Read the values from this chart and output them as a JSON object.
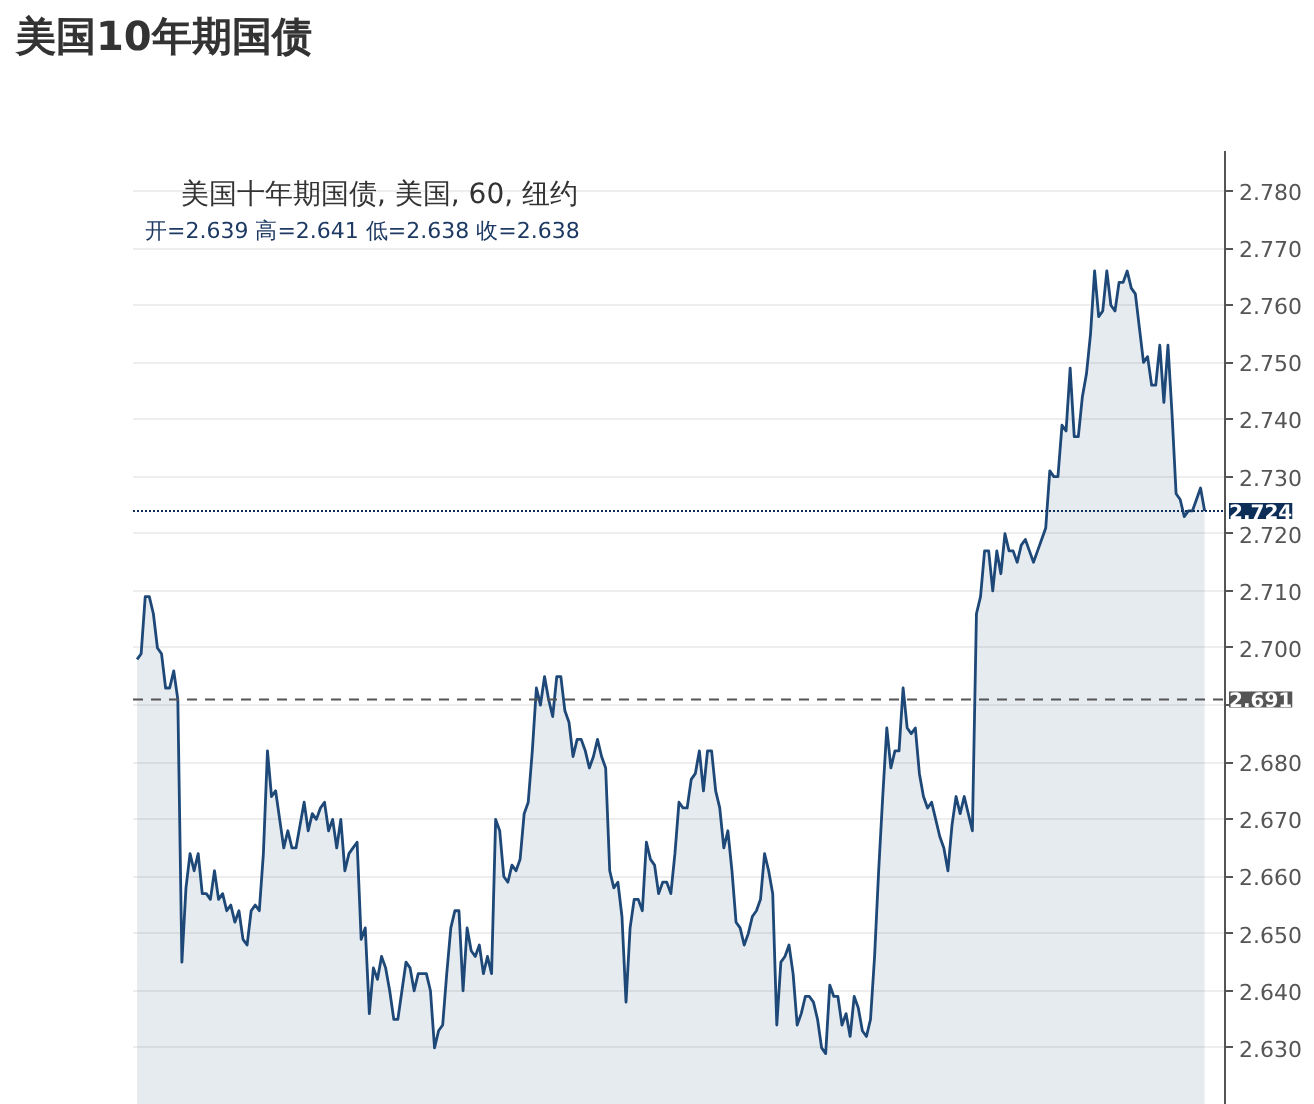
{
  "chart_data": {
    "type": "area",
    "title": "美国10年期国债",
    "subtitle": "美国十年期国债, 美国, 60, 纽约",
    "annotations": [
      "开=2.639 高=2.641 低=2.638 收=2.638"
    ],
    "categories": [
      null,
      null,
      null,
      null,
      null,
      null,
      null,
      null,
      null,
      null,
      null,
      null,
      null,
      null,
      null,
      null,
      null,
      null,
      null,
      null,
      null,
      null,
      null,
      null,
      null,
      null,
      null,
      null,
      null,
      null,
      null,
      null,
      null,
      null,
      null,
      null,
      null,
      null,
      null,
      null,
      null,
      null,
      null,
      null,
      null,
      null,
      null,
      null,
      null,
      null,
      null,
      null,
      null,
      null,
      null,
      null,
      null,
      null,
      null,
      null,
      null,
      null,
      null,
      null,
      null,
      null,
      null,
      null,
      null,
      null,
      null,
      null,
      null,
      null,
      null,
      null,
      null,
      null,
      null,
      null,
      null,
      null,
      null,
      null,
      null,
      null,
      null,
      null,
      null,
      null,
      null,
      null,
      null,
      null,
      null,
      null,
      null,
      null,
      null,
      null,
      null,
      null,
      null,
      null,
      null,
      null,
      null,
      null,
      null,
      null,
      null,
      null,
      null,
      null,
      null,
      null,
      null,
      null,
      null,
      null,
      null,
      null,
      null,
      null,
      null,
      null,
      null,
      null,
      null,
      null,
      null,
      null,
      null,
      null,
      null,
      null,
      null,
      null,
      null,
      null,
      null,
      null,
      null,
      null,
      null,
      null,
      null,
      null,
      null,
      null,
      null,
      null,
      null,
      null,
      null,
      null,
      null,
      null,
      null,
      null,
      null,
      null,
      null,
      null,
      null,
      null,
      null,
      null,
      null,
      null,
      null,
      null,
      null,
      null,
      null,
      null,
      null,
      null,
      null,
      null,
      null,
      null,
      null,
      null,
      null,
      null,
      null,
      null,
      null,
      null,
      null,
      null,
      null,
      null,
      null,
      null,
      null,
      null,
      null,
      null,
      null,
      null,
      null,
      null,
      null,
      null,
      null,
      null,
      null,
      null,
      null,
      null,
      null,
      null,
      null,
      null,
      null,
      null,
      null,
      null,
      null,
      null,
      null,
      null,
      null,
      null,
      null,
      null,
      null,
      null,
      null,
      null,
      null,
      null,
      null,
      null,
      null,
      null,
      null,
      null,
      null,
      null,
      null,
      null,
      null,
      null,
      null,
      null,
      null,
      null,
      null,
      null,
      null,
      null,
      null,
      null,
      null,
      null,
      null,
      null,
      null,
      null,
      null
    ],
    "series": [
      {
        "color": "#1d4877",
        "values": [
          2.698,
          2.699,
          2.709,
          2.709,
          2.706,
          2.7,
          2.699,
          2.693,
          2.693,
          2.696,
          2.691,
          2.645,
          2.658,
          2.664,
          2.661,
          2.664,
          2.657,
          2.657,
          2.656,
          2.661,
          2.656,
          2.657,
          2.654,
          2.655,
          2.652,
          2.654,
          2.649,
          2.648,
          2.654,
          2.655,
          2.654,
          2.664,
          2.682,
          2.674,
          2.675,
          2.67,
          2.665,
          2.668,
          2.665,
          2.665,
          2.669,
          2.673,
          2.668,
          2.671,
          2.67,
          2.672,
          2.673,
          2.668,
          2.67,
          2.665,
          2.67,
          2.661,
          2.664,
          2.665,
          2.666,
          2.649,
          2.651,
          2.636,
          2.644,
          2.642,
          2.646,
          2.644,
          2.64,
          2.635,
          2.635,
          2.64,
          2.645,
          2.644,
          2.64,
          2.643,
          2.643,
          2.643,
          2.64,
          2.63,
          2.633,
          2.634,
          2.643,
          2.651,
          2.654,
          2.654,
          2.64,
          2.651,
          2.647,
          2.646,
          2.648,
          2.643,
          2.646,
          2.643,
          2.67,
          2.668,
          2.66,
          2.659,
          2.662,
          2.661,
          2.663,
          2.671,
          2.673,
          2.682,
          2.693,
          2.69,
          2.695,
          2.691,
          2.688,
          2.695,
          2.695,
          2.689,
          2.687,
          2.681,
          2.684,
          2.684,
          2.682,
          2.679,
          2.681,
          2.684,
          2.681,
          2.679,
          2.661,
          2.658,
          2.659,
          2.653,
          2.638,
          2.651,
          2.656,
          2.656,
          2.654,
          2.666,
          2.663,
          2.662,
          2.657,
          2.659,
          2.659,
          2.657,
          2.664,
          2.673,
          2.672,
          2.672,
          2.677,
          2.678,
          2.682,
          2.675,
          2.682,
          2.682,
          2.675,
          2.672,
          2.665,
          2.668,
          2.661,
          2.652,
          2.651,
          2.648,
          2.65,
          2.653,
          2.654,
          2.656,
          2.664,
          2.661,
          2.657,
          2.634,
          2.645,
          2.646,
          2.648,
          2.643,
          2.634,
          2.636,
          2.639,
          2.639,
          2.638,
          2.635,
          2.63,
          2.629,
          2.641,
          2.639,
          2.639,
          2.634,
          2.636,
          2.632,
          2.639,
          2.637,
          2.633,
          2.632,
          2.635,
          2.646,
          2.661,
          2.674,
          2.686,
          2.679,
          2.682,
          2.682,
          2.693,
          2.686,
          2.685,
          2.686,
          2.678,
          2.674,
          2.672,
          2.673,
          2.67,
          2.667,
          2.665,
          2.661,
          2.669,
          2.674,
          2.671,
          2.674,
          2.671,
          2.668,
          2.706,
          2.709,
          2.717,
          2.717,
          2.71,
          2.717,
          2.713,
          2.72,
          2.717,
          2.717,
          2.715,
          2.718,
          2.719,
          2.717,
          2.715,
          2.717,
          2.719,
          2.721,
          2.731,
          2.73,
          2.73,
          2.739,
          2.738,
          2.749,
          2.737,
          2.737,
          2.744,
          2.748,
          2.755,
          2.766,
          2.758,
          2.759,
          2.766,
          2.76,
          2.759,
          2.764,
          2.764,
          2.766,
          2.763,
          2.762,
          2.756,
          2.75,
          2.751,
          2.746,
          2.746,
          2.753,
          2.743,
          2.753,
          2.741,
          2.727,
          2.726,
          2.723,
          2.724,
          2.724,
          2.726,
          2.728,
          2.724
        ]
      }
    ],
    "ylim": [
      2.62,
      2.787
    ],
    "yticks": [
      {
        "value": 2.63,
        "label": "2.630"
      },
      {
        "value": 2.64,
        "label": "2.640"
      },
      {
        "value": 2.65,
        "label": "2.650"
      },
      {
        "value": 2.66,
        "label": "2.660"
      },
      {
        "value": 2.67,
        "label": "2.670"
      },
      {
        "value": 2.68,
        "label": "2.680"
      },
      {
        "value": 2.69,
        "label": null
      },
      {
        "value": 2.7,
        "label": "2.700"
      },
      {
        "value": 2.71,
        "label": "2.710"
      },
      {
        "value": 2.72,
        "label": "2.720"
      },
      {
        "value": 2.73,
        "label": "2.730"
      },
      {
        "value": 2.74,
        "label": "2.740"
      },
      {
        "value": 2.75,
        "label": "2.750"
      },
      {
        "value": 2.76,
        "label": "2.760"
      },
      {
        "value": 2.77,
        "label": "2.770"
      },
      {
        "value": 2.78,
        "label": "2.780"
      }
    ],
    "grid": "y",
    "tick_labels": "y",
    "ref_lines": [
      {
        "axis": "y",
        "value": 2.724,
        "label": "2.724",
        "color": "#0d2e57",
        "line_style": "dotted"
      },
      {
        "axis": "y",
        "value": 2.691,
        "label": "2.691",
        "color": "#555555",
        "line_style": "dashed"
      }
    ]
  }
}
